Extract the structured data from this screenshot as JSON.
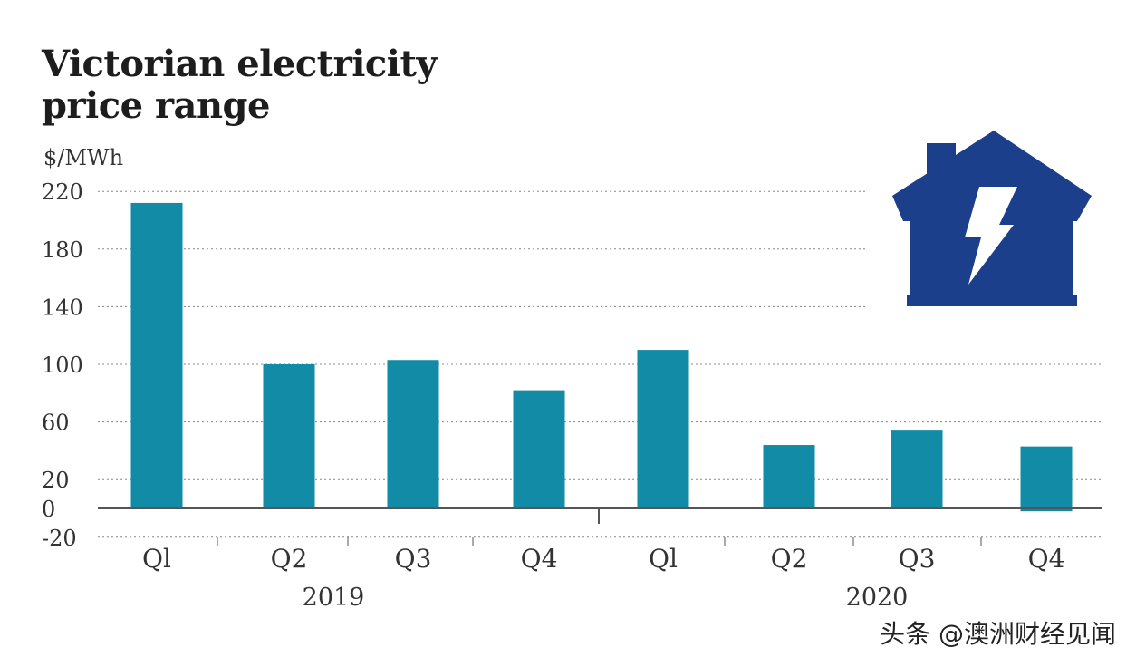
{
  "chart_data": {
    "type": "bar",
    "title": "Victorian electricity price range",
    "title_lines": [
      "Victorian electricity",
      "price range"
    ],
    "ylabel": "$/MWh",
    "xlabel": "",
    "ylim": [
      -20,
      220
    ],
    "yticks": [
      220,
      180,
      140,
      100,
      60,
      20,
      0,
      -20
    ],
    "grid": true,
    "categories": [
      "Q1",
      "Q2",
      "Q3",
      "Q4",
      "Q1",
      "Q2",
      "Q3",
      "Q4"
    ],
    "category_labels": [
      "Ql",
      "Q2",
      "Q3",
      "Q4",
      "Ql",
      "Q2",
      "Q3",
      "Q4"
    ],
    "groups": [
      {
        "label": "2019",
        "categories": [
          "Q1",
          "Q2",
          "Q3",
          "Q4"
        ]
      },
      {
        "label": "2020",
        "categories": [
          "Q1",
          "Q2",
          "Q3",
          "Q4"
        ]
      }
    ],
    "series": [
      {
        "name": "Price range",
        "values": [
          212,
          100,
          103,
          82,
          110,
          44,
          54,
          43
        ],
        "negative_extents": [
          0,
          0,
          0,
          0,
          0,
          0,
          0,
          -2
        ]
      }
    ]
  },
  "colors": {
    "bar": "#118ba6",
    "grid": "#888888",
    "axis": "#555555",
    "icon": "#1b3f8b",
    "text": "#333333"
  },
  "icon": {
    "name": "house-lightning-icon"
  },
  "watermark": "头条 @澳洲财经见闻"
}
